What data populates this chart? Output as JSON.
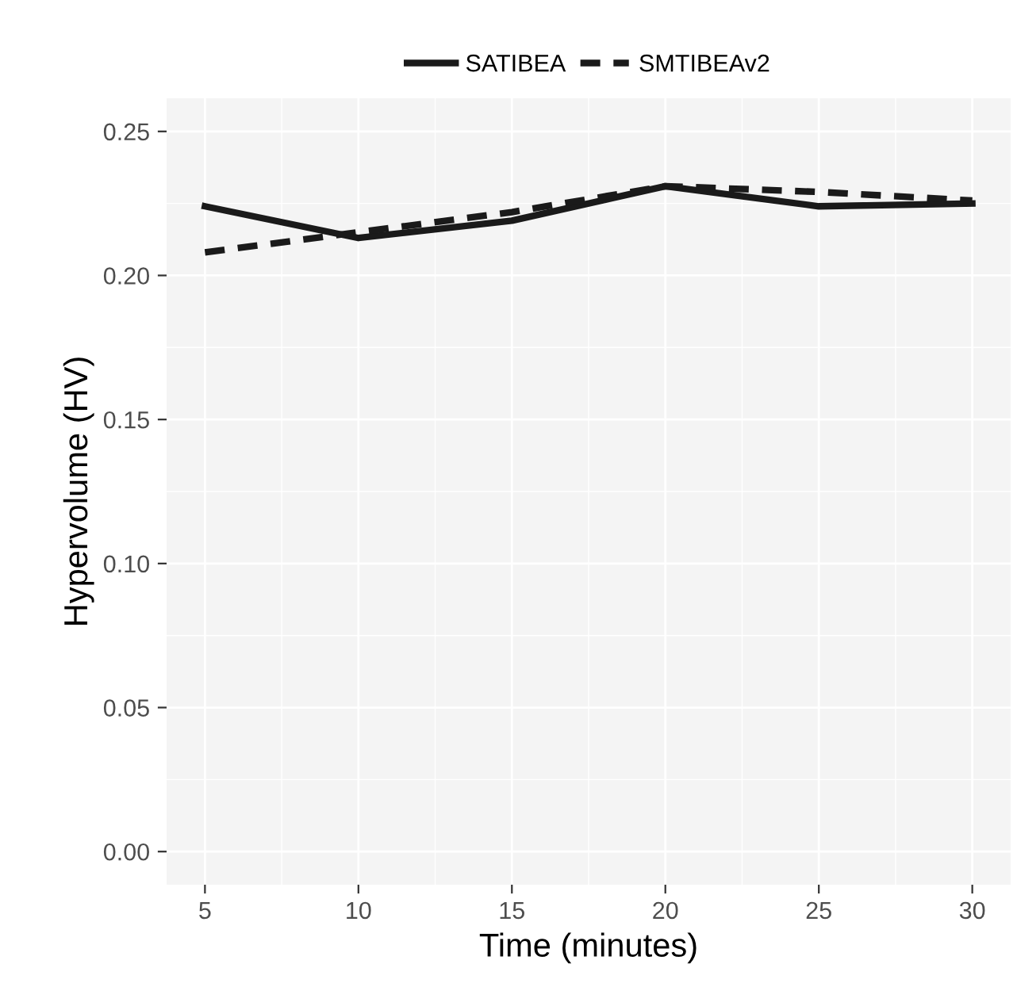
{
  "chart_data": {
    "type": "line",
    "xlabel": "Time (minutes)",
    "ylabel": "Hypervolume (HV)",
    "x": [
      5,
      10,
      15,
      20,
      25,
      30
    ],
    "series": [
      {
        "name": "SATIBEA",
        "color": "#1a1a1a",
        "line_style": "solid",
        "values": [
          0.224,
          0.213,
          0.219,
          0.231,
          0.224,
          0.225
        ]
      },
      {
        "name": "SMTIBEAv2",
        "color": "#1a1a1a",
        "line_style": "dashed",
        "values": [
          0.208,
          0.215,
          0.222,
          0.231,
          0.229,
          0.226
        ]
      }
    ],
    "xlim": [
      3.75,
      31.25
    ],
    "xticks": [
      5,
      10,
      15,
      20,
      25,
      30
    ],
    "ylim": [
      -0.0115,
      0.2615
    ],
    "yticks": [
      {
        "value": 0,
        "label": "0.00"
      },
      {
        "value": 0.05,
        "label": "0.05"
      },
      {
        "value": 0.1,
        "label": "0.10"
      },
      {
        "value": 0.15,
        "label": "0.15"
      },
      {
        "value": 0.2,
        "label": "0.20"
      },
      {
        "value": 0.25,
        "label": "0.25"
      }
    ],
    "grid": true,
    "legend": "top",
    "marker": "none"
  }
}
